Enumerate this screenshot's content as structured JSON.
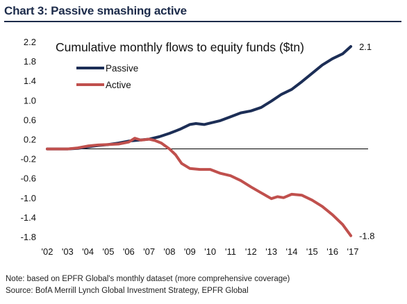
{
  "header": {
    "title": "Chart 3: Passive smashing active"
  },
  "footer": {
    "note": "Note: based on EPFR Global's monthly dataset (more comprehensive coverage)",
    "source": "Source: BofA Merrill Lynch Global Investment Strategy, EPFR Global"
  },
  "colors": {
    "passive": "#1c2e56",
    "active": "#c0504d",
    "axis": "#000000"
  },
  "chart_data": {
    "type": "line",
    "title": "Cumulative monthly flows to equity funds ($tn)",
    "xlim": [
      2002,
      2017.2
    ],
    "ylim": [
      -1.8,
      2.2
    ],
    "yticks": [
      "2.2",
      "1.8",
      "1.4",
      "1.0",
      "0.6",
      "0.2",
      "-0.2",
      "-0.6",
      "-1.0",
      "-1.4",
      "-1.8"
    ],
    "ytick_values": [
      2.2,
      1.8,
      1.4,
      1.0,
      0.6,
      0.2,
      -0.2,
      -0.6,
      -1.0,
      -1.4,
      -1.8
    ],
    "xticks": [
      "'02",
      "'03",
      "'04",
      "'05",
      "'06",
      "'07",
      "'08",
      "'09",
      "'10",
      "'11",
      "'12",
      "'13",
      "'14",
      "'15",
      "'16",
      "'17"
    ],
    "xtick_values": [
      2002,
      2003,
      2004,
      2005,
      2006,
      2007,
      2008,
      2009,
      2010,
      2011,
      2012,
      2013,
      2014,
      2015,
      2016,
      2017
    ],
    "legend_position": "top-left",
    "series": [
      {
        "name": "Passive",
        "end_label": "2.1",
        "x": [
          2002,
          2003,
          2003.5,
          2004,
          2004.5,
          2005,
          2005.5,
          2006,
          2006.5,
          2007,
          2007.5,
          2008,
          2008.5,
          2009,
          2009.3,
          2009.7,
          2010,
          2010.5,
          2011,
          2011.5,
          2012,
          2012.5,
          2013,
          2013.5,
          2014,
          2014.5,
          2015,
          2015.5,
          2016,
          2016.5,
          2016.9
        ],
        "y": [
          0.0,
          0.0,
          0.01,
          0.04,
          0.07,
          0.09,
          0.12,
          0.16,
          0.18,
          0.2,
          0.25,
          0.32,
          0.4,
          0.5,
          0.52,
          0.5,
          0.53,
          0.58,
          0.66,
          0.74,
          0.78,
          0.85,
          0.98,
          1.12,
          1.22,
          1.38,
          1.55,
          1.72,
          1.85,
          1.95,
          2.1
        ]
      },
      {
        "name": "Active",
        "end_label": "-1.8",
        "x": [
          2002,
          2003,
          2003.5,
          2004,
          2004.5,
          2005,
          2005.5,
          2006,
          2006.3,
          2006.6,
          2007,
          2007.3,
          2007.6,
          2008,
          2008.3,
          2008.6,
          2009,
          2009.5,
          2010,
          2010.5,
          2011,
          2011.5,
          2012,
          2012.5,
          2013,
          2013.3,
          2013.6,
          2014,
          2014.5,
          2015,
          2015.5,
          2016,
          2016.5,
          2016.9
        ],
        "y": [
          0.0,
          0.0,
          0.02,
          0.06,
          0.08,
          0.09,
          0.1,
          0.14,
          0.22,
          0.18,
          0.2,
          0.17,
          0.12,
          0.0,
          -0.12,
          -0.3,
          -0.4,
          -0.42,
          -0.42,
          -0.5,
          -0.55,
          -0.65,
          -0.78,
          -0.9,
          -1.02,
          -0.98,
          -1.0,
          -0.93,
          -0.95,
          -1.05,
          -1.18,
          -1.35,
          -1.55,
          -1.78
        ]
      }
    ]
  }
}
